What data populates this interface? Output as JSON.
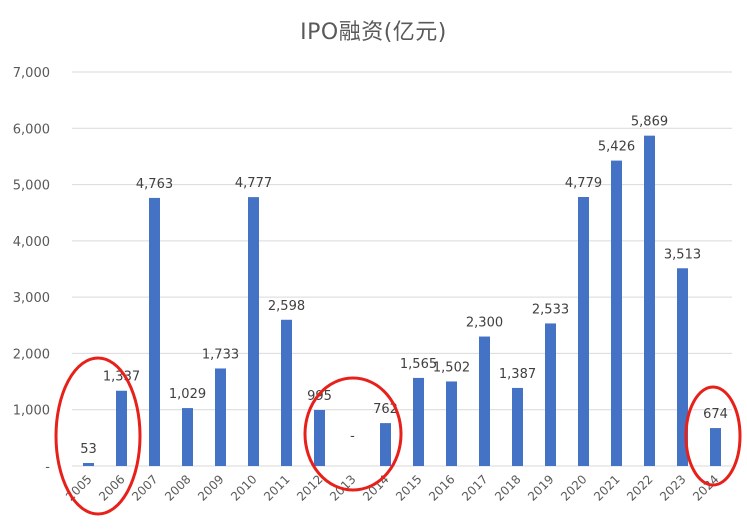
{
  "chart_data": {
    "type": "bar",
    "title": "IPO融资(亿元)",
    "xlabel": "",
    "ylabel": "",
    "ylim": [
      0,
      7000
    ],
    "yticks": [
      0,
      1000,
      2000,
      3000,
      4000,
      5000,
      6000,
      7000
    ],
    "ytick_labels": [
      "-",
      "1,000",
      "2,000",
      "3,000",
      "4,000",
      "5,000",
      "6,000",
      "7,000"
    ],
    "grid": true,
    "legend": null,
    "categories": [
      "2005",
      "2006",
      "2007",
      "2008",
      "2009",
      "2010",
      "2011",
      "2012",
      "2013",
      "2014",
      "2015",
      "2016",
      "2017",
      "2018",
      "2019",
      "2020",
      "2021",
      "2022",
      "2023",
      "2024"
    ],
    "values": [
      53,
      1337,
      4763,
      1029,
      1733,
      4777,
      2598,
      995,
      0,
      762,
      1565,
      1502,
      2300,
      1387,
      2533,
      4779,
      5426,
      5869,
      3513,
      674
    ],
    "data_labels": [
      "53",
      "1,337",
      "4,763",
      "1,029",
      "1,733",
      "4,777",
      "2,598",
      "995",
      "-",
      "762",
      "1,565",
      "1,502",
      "2,300",
      "1,387",
      "2,533",
      "4,779",
      "5,426",
      "5,869",
      "3,513",
      "674"
    ],
    "bar_color": "#4472C4",
    "annotations": [
      {
        "type": "ellipse",
        "color": "#E8201A",
        "covers": [
          "2005",
          "2006"
        ]
      },
      {
        "type": "ellipse",
        "color": "#E8201A",
        "covers": [
          "2012",
          "2013",
          "2014"
        ]
      },
      {
        "type": "ellipse",
        "color": "#E8201A",
        "covers": [
          "2024"
        ]
      }
    ]
  },
  "colors": {
    "bar": "#4472C4",
    "grid": "#D9D9D9",
    "axis_text": "#595959",
    "label_text": "#404040",
    "annotation": "#E8201A"
  }
}
